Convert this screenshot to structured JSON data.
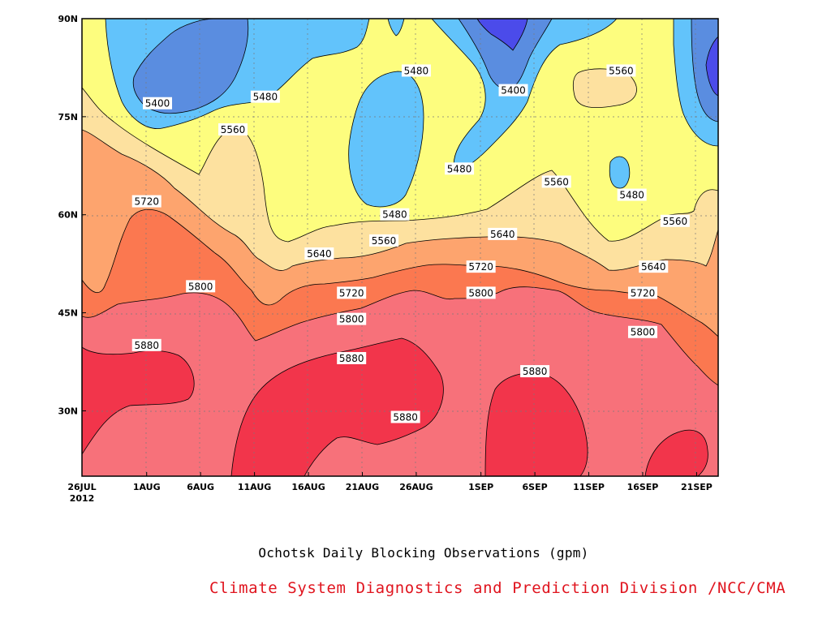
{
  "chart_data": {
    "type": "contour",
    "title": "Ochotsk Daily Blocking Observations (gpm)",
    "credit": "Climate System Diagnostics and Prediction Division /NCC/CMA",
    "units": "gpm",
    "x_axis": {
      "start": "26JUL 2012",
      "end": "23SEP 2012",
      "tick_labels": [
        "26JUL",
        "1AUG",
        "6AUG",
        "11AUG",
        "16AUG",
        "21AUG",
        "26AUG",
        "1SEP",
        "6SEP",
        "11SEP",
        "16SEP",
        "21SEP"
      ],
      "year_label": "2012"
    },
    "y_axis": {
      "range": [
        20,
        90
      ],
      "tick_labels": [
        "30N",
        "45N",
        "60N",
        "75N",
        "90N"
      ]
    },
    "levels": [
      5400,
      5480,
      5560,
      5640,
      5720,
      5800,
      5880
    ],
    "level_colors": {
      "below_5400": "#4b4bea",
      "5400_5480": "#5a8de0",
      "5480_5560": "#62c3fb",
      "5560_5640": "#fdfd7e",
      "5640_5720": "#fde19f",
      "5720_5800": "#fda46e",
      "5800_5880": "#fb7850",
      "above_5880": "#f7717a",
      "above_5880_core": "#f2354b"
    },
    "contour_labels": [
      {
        "value": "5400",
        "date": "2AUG",
        "lat": 77
      },
      {
        "value": "5480",
        "date": "12AUG",
        "lat": 78
      },
      {
        "value": "5480",
        "date": "26AUG",
        "lat": 82
      },
      {
        "value": "5400",
        "date": "4SEP",
        "lat": 79
      },
      {
        "value": "5560",
        "date": "14SEP",
        "lat": 82
      },
      {
        "value": "5560",
        "date": "9AUG",
        "lat": 73
      },
      {
        "value": "5480",
        "date": "30AUG",
        "lat": 67
      },
      {
        "value": "5560",
        "date": "8SEP",
        "lat": 65
      },
      {
        "value": "5480",
        "date": "15SEP",
        "lat": 63
      },
      {
        "value": "5720",
        "date": "1AUG",
        "lat": 62
      },
      {
        "value": "5480",
        "date": "24AUG",
        "lat": 60
      },
      {
        "value": "5560",
        "date": "19SEP",
        "lat": 59
      },
      {
        "value": "5560",
        "date": "23AUG",
        "lat": 56
      },
      {
        "value": "5640",
        "date": "3SEP",
        "lat": 57
      },
      {
        "value": "5640",
        "date": "17AUG",
        "lat": 54
      },
      {
        "value": "5720",
        "date": "1SEP",
        "lat": 52
      },
      {
        "value": "5640",
        "date": "17SEP",
        "lat": 52
      },
      {
        "value": "5800",
        "date": "6AUG",
        "lat": 49
      },
      {
        "value": "5720",
        "date": "20AUG",
        "lat": 48
      },
      {
        "value": "5800",
        "date": "1SEP",
        "lat": 48
      },
      {
        "value": "5720",
        "date": "16SEP",
        "lat": 48
      },
      {
        "value": "5800",
        "date": "20AUG",
        "lat": 44
      },
      {
        "value": "5800",
        "date": "16SEP",
        "lat": 42
      },
      {
        "value": "5880",
        "date": "1AUG",
        "lat": 40
      },
      {
        "value": "5880",
        "date": "20AUG",
        "lat": 38
      },
      {
        "value": "5880",
        "date": "6SEP",
        "lat": 36
      },
      {
        "value": "5880",
        "date": "25AUG",
        "lat": 29
      }
    ]
  }
}
